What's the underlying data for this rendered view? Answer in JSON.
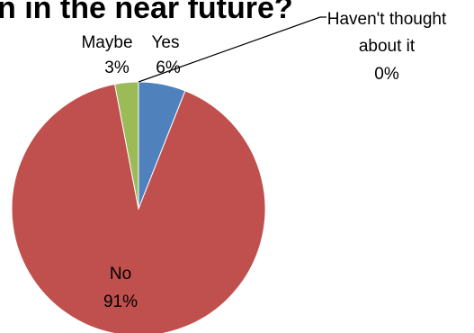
{
  "chart_data": {
    "type": "pie",
    "title": "n in the near future?",
    "slices": [
      {
        "label": "Yes",
        "value": 6,
        "percent_label": "6%",
        "color": "#4f81bd"
      },
      {
        "label": "No",
        "value": 91,
        "percent_label": "91%",
        "color": "#c0504d"
      },
      {
        "label": "Maybe",
        "value": 3,
        "percent_label": "3%",
        "color": "#9bbb59"
      },
      {
        "label": "Haven't thought about it",
        "label_lines": [
          "Haven't thought",
          "about it"
        ],
        "value": 0,
        "percent_label": "0%",
        "color": "#8064a2"
      }
    ],
    "legend": "none"
  }
}
